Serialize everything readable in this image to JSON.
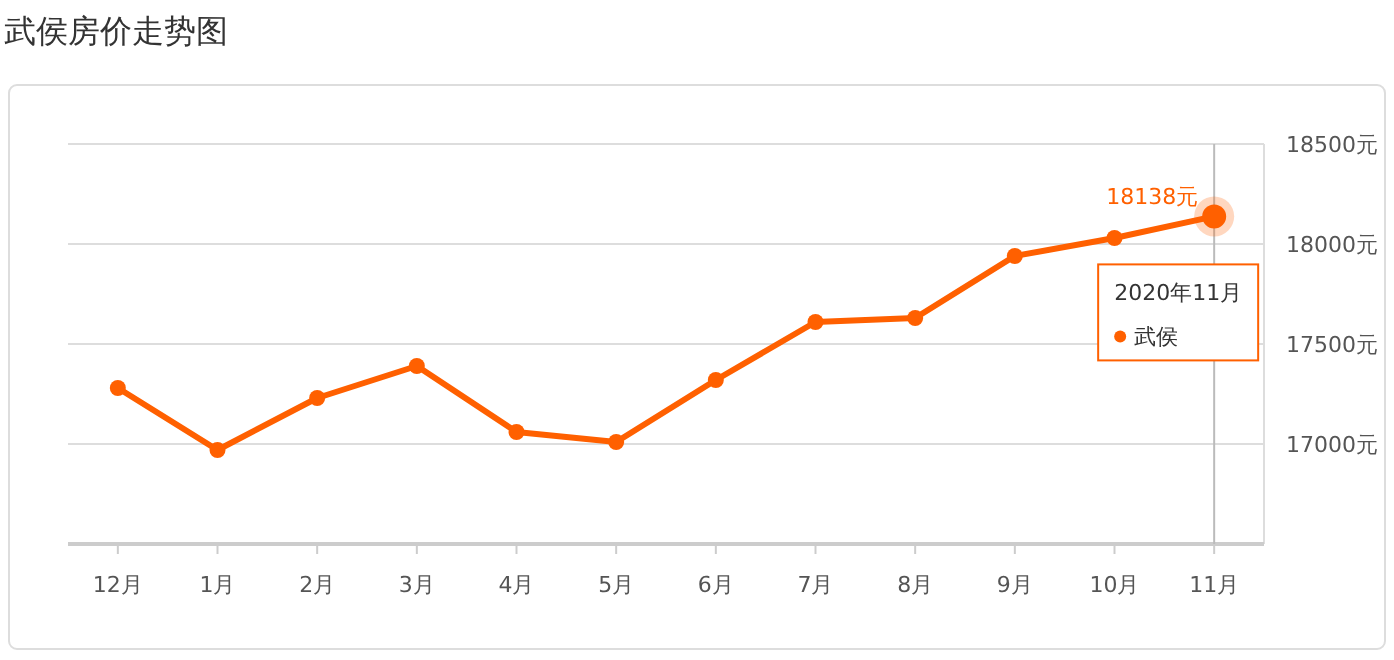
{
  "chart_data": {
    "type": "line",
    "title": "武侯房价走势图",
    "categories": [
      "12月",
      "1月",
      "2月",
      "3月",
      "4月",
      "5月",
      "6月",
      "7月",
      "8月",
      "9月",
      "10月",
      "11月"
    ],
    "series": [
      {
        "name": "武侯",
        "color": "#ff6000",
        "values": [
          17280,
          16970,
          17230,
          17390,
          17060,
          17010,
          17320,
          17610,
          17630,
          17940,
          18030,
          18138
        ],
        "value_labels": [
          null,
          null,
          null,
          null,
          null,
          null,
          null,
          null,
          null,
          null,
          null,
          "18138元"
        ]
      }
    ],
    "ylim": [
      16500,
      18500
    ],
    "yticks": [
      {
        "value": 16500,
        "label": null
      },
      {
        "value": 17000,
        "label": "17000元"
      },
      {
        "value": 17500,
        "label": "17500元"
      },
      {
        "value": 18000,
        "label": "18000元"
      },
      {
        "value": 18500,
        "label": "18500元"
      }
    ],
    "grid": "y",
    "marker": "circle",
    "line_style": "solid",
    "legend": "right",
    "ref_lines": [
      {
        "axis": "x",
        "value": "11月",
        "color": "#bbbbbb"
      }
    ],
    "annotations": [
      {
        "text": "2020年11月",
        "x": "11月",
        "y": 18138
      }
    ]
  }
}
